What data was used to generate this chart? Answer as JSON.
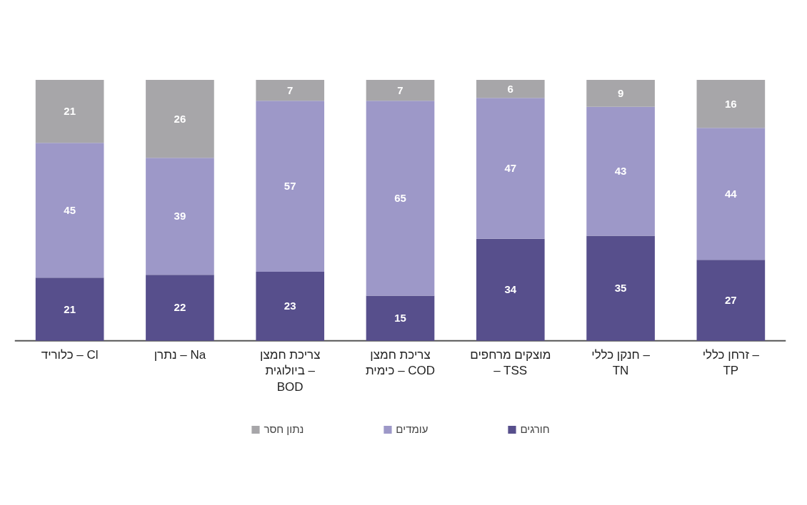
{
  "chart_data": {
    "type": "bar",
    "stacked": true,
    "categories": [
      "כלוריד – Cl",
      "נתרן – Na",
      "צריכת חמצן ביולוגית – BOD",
      "צריכת חמצן כימית – COD",
      "מוצקים מרחפים – TSS",
      "חנקן כללי – TN",
      "זרחן כללי – TP"
    ],
    "series": [
      {
        "name": "חורגים",
        "color": "#574f8c",
        "values": [
          21,
          22,
          23,
          15,
          34,
          35,
          27
        ]
      },
      {
        "name": "עומדים",
        "color": "#9d98c8",
        "values": [
          45,
          39,
          57,
          65,
          47,
          43,
          44
        ]
      },
      {
        "name": "נתון חסר",
        "color": "#a7a6a9",
        "values": [
          21,
          26,
          7,
          7,
          6,
          9,
          16
        ]
      }
    ],
    "data_labels": true,
    "legend": "bottom",
    "grid": false,
    "tick_labels": "x"
  }
}
